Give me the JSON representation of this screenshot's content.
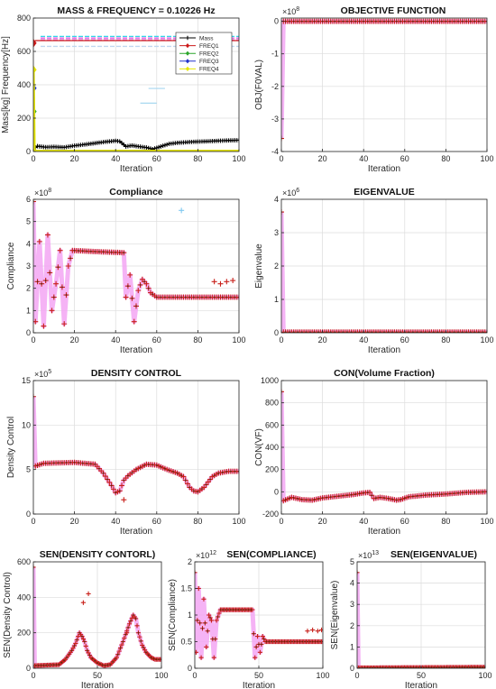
{
  "chart_data": [
    {
      "id": "mass_freq",
      "type": "line",
      "title": "MASS & FREQUENCY = 0.10226 Hz",
      "xlabel": "Iteration",
      "ylabel": "Mass[kg] Frequency[Hz]",
      "xlim": [
        0,
        100
      ],
      "ylim": [
        0,
        800
      ],
      "xticks": [
        0,
        20,
        40,
        60,
        80,
        100
      ],
      "yticks": [
        0,
        200,
        400,
        600,
        800
      ],
      "exponent": "",
      "legend": {
        "location": "top-right",
        "entries": [
          "Mass",
          "FREQ1",
          "FREQ2",
          "FREQ3",
          "FREQ4"
        ]
      },
      "series": [
        {
          "name": "Mass",
          "color": "#000000",
          "marker": "plus",
          "style": "line",
          "knots": [
            [
              0,
              16
            ],
            [
              2,
              32
            ],
            [
              6,
              26
            ],
            [
              10,
              28
            ],
            [
              15,
              25
            ],
            [
              20,
              35
            ],
            [
              25,
              42
            ],
            [
              30,
              50
            ],
            [
              35,
              58
            ],
            [
              40,
              64
            ],
            [
              42,
              61
            ],
            [
              45,
              30
            ],
            [
              48,
              36
            ],
            [
              50,
              32
            ],
            [
              55,
              24
            ],
            [
              58,
              14
            ],
            [
              62,
              30
            ],
            [
              66,
              46
            ],
            [
              70,
              52
            ],
            [
              76,
              57
            ],
            [
              82,
              60
            ],
            [
              88,
              63
            ],
            [
              94,
              66
            ],
            [
              100,
              68
            ]
          ]
        },
        {
          "name": "FREQ1",
          "color": "#cc1a1a",
          "marker": "diamond",
          "style": "flat",
          "points": [
            [
              0,
              650
            ],
            [
              0.5,
              660
            ],
            [
              1,
              665
            ],
            [
              100,
              665
            ]
          ]
        },
        {
          "name": "FREQ2",
          "color": "#2aa52a",
          "marker": "diamond",
          "style": "flat",
          "points": [
            [
              0,
              240
            ],
            [
              1,
              248
            ]
          ]
        },
        {
          "name": "FREQ3",
          "color": "#2233cc",
          "marker": "diamond",
          "style": "flat",
          "points": [
            [
              0,
              380
            ],
            [
              1,
              388
            ]
          ]
        },
        {
          "name": "FREQ4",
          "color": "#e6e600",
          "marker": "diamond",
          "style": "flat",
          "points": [
            [
              0,
              490
            ],
            [
              0.5,
              0
            ],
            [
              1,
              2
            ],
            [
              100,
              3
            ]
          ]
        }
      ],
      "background_lines": [
        {
          "y": 690,
          "color": "#30d7e8"
        },
        {
          "y": 680,
          "color": "#e060e0"
        },
        {
          "y": 670,
          "color": "#e080e0"
        },
        {
          "y": 630,
          "color": "#c0d8f0"
        }
      ]
    },
    {
      "id": "objective",
      "type": "scatter",
      "title": "OBJECTIVE FUNCTION",
      "xlabel": "Iteration",
      "ylabel": "OBJ(F0VAL)",
      "xlim": [
        0,
        100
      ],
      "ylim": [
        -4,
        0.1
      ],
      "xticks": [
        0,
        20,
        40,
        60,
        80,
        100
      ],
      "yticks": [
        -4,
        -3,
        -2,
        -1,
        0
      ],
      "exponent": "10^8",
      "knots": [
        [
          0,
          -3.6
        ],
        [
          1,
          0
        ],
        [
          100,
          0
        ]
      ]
    },
    {
      "id": "compliance",
      "type": "scatter",
      "title": "Compliance",
      "xlabel": "Iteration",
      "ylabel": "Compliance",
      "xlim": [
        0,
        100
      ],
      "ylim": [
        0,
        6
      ],
      "xticks": [
        0,
        20,
        40,
        60,
        80,
        100
      ],
      "yticks": [
        0,
        1,
        2,
        3,
        4,
        5,
        6
      ],
      "exponent": "10^8",
      "knots": [
        [
          0,
          5.9
        ],
        [
          1,
          0.5
        ],
        [
          3,
          4.1
        ],
        [
          5,
          0.3
        ],
        [
          7,
          4.4
        ],
        [
          9,
          1.0
        ],
        [
          11,
          2.2
        ],
        [
          13,
          3.7
        ],
        [
          15,
          0.4
        ],
        [
          17,
          3.0
        ],
        [
          19,
          3.7
        ],
        [
          30,
          3.65
        ],
        [
          44,
          3.6
        ],
        [
          45,
          1.6
        ],
        [
          47,
          2.6
        ],
        [
          49,
          0.5
        ],
        [
          51,
          1.9
        ],
        [
          53,
          2.4
        ],
        [
          55,
          2.2
        ],
        [
          57,
          1.8
        ],
        [
          60,
          1.6
        ],
        [
          80,
          1.6
        ],
        [
          90,
          1.6
        ],
        [
          100,
          1.6
        ]
      ],
      "extra_points": [
        [
          72,
          5.5
        ],
        [
          88,
          2.3
        ],
        [
          91,
          2.2
        ],
        [
          94,
          2.3
        ],
        [
          97,
          2.35
        ]
      ]
    },
    {
      "id": "eigenvalue",
      "type": "scatter",
      "title": "EIGENVALUE",
      "xlabel": "Iteration",
      "ylabel": "Eigenvalue",
      "xlim": [
        0,
        100
      ],
      "ylim": [
        0,
        4
      ],
      "xticks": [
        0,
        20,
        40,
        60,
        80,
        100
      ],
      "yticks": [
        0,
        1,
        2,
        3,
        4
      ],
      "exponent": "10^6",
      "knots": [
        [
          0,
          3.62
        ],
        [
          1,
          0.02
        ],
        [
          100,
          0.02
        ]
      ]
    },
    {
      "id": "density",
      "type": "scatter",
      "title": "DENSITY CONTROL",
      "xlabel": "Iteration",
      "ylabel": "Density Control",
      "xlim": [
        0,
        100
      ],
      "ylim": [
        0,
        15
      ],
      "xticks": [
        0,
        20,
        40,
        60,
        80,
        100
      ],
      "yticks": [
        0,
        5,
        10,
        15
      ],
      "exponent": "10^5",
      "knots": [
        [
          0,
          13.2
        ],
        [
          1,
          5.4
        ],
        [
          5,
          5.7
        ],
        [
          20,
          5.8
        ],
        [
          30,
          5.6
        ],
        [
          34,
          4.6
        ],
        [
          38,
          3.2
        ],
        [
          40,
          2.4
        ],
        [
          42,
          2.6
        ],
        [
          44,
          3.8
        ],
        [
          46,
          4.3
        ],
        [
          50,
          5.0
        ],
        [
          55,
          5.6
        ],
        [
          60,
          5.5
        ],
        [
          65,
          5.0
        ],
        [
          70,
          4.6
        ],
        [
          73,
          4.2
        ],
        [
          76,
          3.0
        ],
        [
          78,
          2.6
        ],
        [
          80,
          2.5
        ],
        [
          83,
          3.0
        ],
        [
          87,
          4.2
        ],
        [
          90,
          4.6
        ],
        [
          95,
          4.8
        ],
        [
          100,
          4.8
        ]
      ],
      "extra_points": [
        [
          44,
          1.6
        ]
      ]
    },
    {
      "id": "con_vf",
      "type": "scatter",
      "title": "CON(Volume Fraction)",
      "xlabel": "Iteration",
      "ylabel": "CON(VF)",
      "xlim": [
        0,
        100
      ],
      "ylim": [
        -200,
        1000
      ],
      "xticks": [
        0,
        20,
        40,
        60,
        80,
        100
      ],
      "yticks": [
        -200,
        0,
        200,
        400,
        600,
        800,
        1000
      ],
      "exponent": "",
      "knots": [
        [
          0,
          900
        ],
        [
          1,
          -80
        ],
        [
          5,
          -50
        ],
        [
          10,
          -70
        ],
        [
          15,
          -75
        ],
        [
          20,
          -55
        ],
        [
          25,
          -45
        ],
        [
          30,
          -35
        ],
        [
          35,
          -25
        ],
        [
          40,
          -10
        ],
        [
          43,
          -5
        ],
        [
          45,
          -60
        ],
        [
          48,
          -50
        ],
        [
          52,
          -60
        ],
        [
          56,
          -75
        ],
        [
          58,
          -70
        ],
        [
          62,
          -45
        ],
        [
          70,
          -30
        ],
        [
          80,
          -20
        ],
        [
          90,
          -5
        ],
        [
          100,
          0
        ]
      ]
    },
    {
      "id": "sen_density",
      "type": "scatter",
      "title": "SEN(DENSITY CONTORL)",
      "xlabel": "Iteration",
      "ylabel": "SEN(Density Control)",
      "xlim": [
        0,
        100
      ],
      "ylim": [
        0,
        600
      ],
      "xticks": [
        0,
        50,
        100
      ],
      "yticks": [
        0,
        200,
        400,
        600
      ],
      "exponent": "",
      "knots": [
        [
          0,
          570
        ],
        [
          1,
          15
        ],
        [
          20,
          20
        ],
        [
          25,
          50
        ],
        [
          30,
          100
        ],
        [
          33,
          140
        ],
        [
          36,
          200
        ],
        [
          38,
          180
        ],
        [
          40,
          150
        ],
        [
          42,
          100
        ],
        [
          45,
          60
        ],
        [
          50,
          30
        ],
        [
          55,
          15
        ],
        [
          60,
          20
        ],
        [
          65,
          60
        ],
        [
          70,
          150
        ],
        [
          75,
          250
        ],
        [
          78,
          300
        ],
        [
          80,
          280
        ],
        [
          82,
          200
        ],
        [
          85,
          130
        ],
        [
          88,
          90
        ],
        [
          92,
          60
        ],
        [
          95,
          50
        ],
        [
          100,
          50
        ]
      ],
      "extra_points": [
        [
          43,
          420
        ],
        [
          39,
          370
        ],
        [
          73,
          200
        ]
      ]
    },
    {
      "id": "sen_compliance",
      "type": "scatter",
      "title": "SEN(COMPLIANCE)",
      "xlabel": "Iteration",
      "ylabel": "SEN(Compliance)",
      "xlim": [
        0,
        100
      ],
      "ylim": [
        0,
        2
      ],
      "xticks": [
        0,
        50,
        100
      ],
      "yticks": [
        0,
        0.5,
        1,
        1.5,
        2
      ],
      "exponent": "10^12",
      "knots": [
        [
          0,
          1.8
        ],
        [
          1,
          0.3
        ],
        [
          3,
          1.5
        ],
        [
          5,
          0.2
        ],
        [
          7,
          1.3
        ],
        [
          9,
          0.4
        ],
        [
          11,
          1.0
        ],
        [
          13,
          0.9
        ],
        [
          15,
          0.2
        ],
        [
          17,
          0.9
        ],
        [
          20,
          1.1
        ],
        [
          30,
          1.1
        ],
        [
          45,
          1.1
        ],
        [
          47,
          0.2
        ],
        [
          49,
          0.6
        ],
        [
          51,
          0.3
        ],
        [
          53,
          0.6
        ],
        [
          55,
          0.5
        ],
        [
          60,
          0.5
        ],
        [
          80,
          0.5
        ],
        [
          100,
          0.5
        ]
      ],
      "extra_points": [
        [
          88,
          0.7
        ],
        [
          92,
          0.72
        ],
        [
          96,
          0.7
        ],
        [
          99,
          0.72
        ]
      ]
    },
    {
      "id": "sen_eigen",
      "type": "scatter",
      "title": "SEN(EIGENVALUE)",
      "xlabel": "Iteration",
      "ylabel": "SEN(Eigenvalue)",
      "xlim": [
        0,
        100
      ],
      "ylim": [
        0,
        5
      ],
      "xticks": [
        0,
        50,
        100
      ],
      "yticks": [
        0,
        1,
        2,
        3,
        4,
        5
      ],
      "exponent": "10^13",
      "knots": [
        [
          0,
          4.5
        ],
        [
          1,
          0.02
        ],
        [
          100,
          0.05
        ]
      ]
    }
  ]
}
